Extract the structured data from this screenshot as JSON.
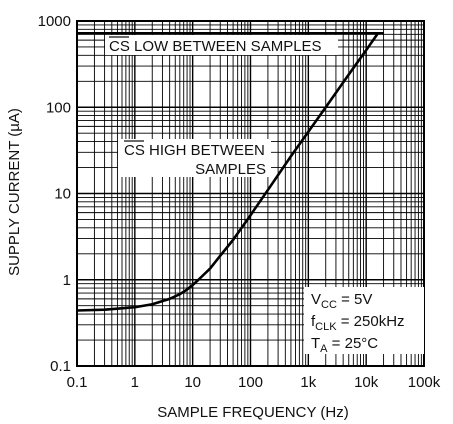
{
  "chart_data": {
    "type": "line",
    "title": "",
    "xlabel": "SAMPLE FREQUENCY (Hz)",
    "ylabel": "SUPPLY CURRENT (µA)",
    "x_scale": "log",
    "y_scale": "log",
    "xlim": [
      0.1,
      100000
    ],
    "ylim": [
      0.1,
      1000
    ],
    "grid": true,
    "x_ticks": [
      {
        "value": 0.1,
        "label": "0.1"
      },
      {
        "value": 1,
        "label": "1"
      },
      {
        "value": 10,
        "label": "10"
      },
      {
        "value": 100,
        "label": "100"
      },
      {
        "value": 1000,
        "label": "1k"
      },
      {
        "value": 10000,
        "label": "10k"
      },
      {
        "value": 100000,
        "label": "100k"
      }
    ],
    "y_ticks": [
      {
        "value": 0.1,
        "label": "0.1"
      },
      {
        "value": 1,
        "label": "1"
      },
      {
        "value": 10,
        "label": "10"
      },
      {
        "value": 100,
        "label": "100"
      },
      {
        "value": 1000,
        "label": "1000"
      }
    ],
    "series": [
      {
        "name": "CS LOW BETWEEN SAMPLES",
        "x": [
          0.1,
          20000
        ],
        "y": [
          720,
          720
        ]
      },
      {
        "name": "CS HIGH BETWEEN SAMPLES",
        "x": [
          0.1,
          0.3,
          1,
          2,
          4,
          6,
          8,
          10,
          12,
          15,
          20,
          30,
          50,
          100,
          200,
          500,
          1000,
          2000,
          5000,
          10000,
          16000
        ],
        "y": [
          0.44,
          0.45,
          0.48,
          0.52,
          0.6,
          0.68,
          0.77,
          0.87,
          0.97,
          1.12,
          1.35,
          1.9,
          2.9,
          5.6,
          11,
          27,
          52,
          100,
          240,
          460,
          720
        ]
      }
    ],
    "annotations": {
      "cs_low_prefix": "CS",
      "cs_low_rest": " LOW BETWEEN SAMPLES",
      "cs_high_prefix": "CS",
      "cs_high_rest": " HIGH BETWEEN",
      "cs_high_line2": "SAMPLES",
      "cond_vcc_main": "V",
      "cond_vcc_sub": "CC",
      "cond_vcc_rest": " = 5V",
      "cond_fclk_main": "f",
      "cond_fclk_sub": "CLK",
      "cond_fclk_rest": " = 250kHz",
      "cond_ta_main": "T",
      "cond_ta_sub": "A",
      "cond_ta_rest": " = 25°C"
    }
  }
}
